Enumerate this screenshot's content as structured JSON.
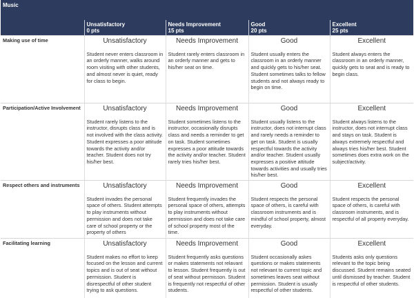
{
  "title": "Music",
  "levels": [
    {
      "name": "Unsatisfactory",
      "points": "0 pts"
    },
    {
      "name": "Needs Improvement",
      "points": "15 pts"
    },
    {
      "name": "Good",
      "points": "20 pts"
    },
    {
      "name": "Excellent",
      "points": "25 pts"
    }
  ],
  "criteria": [
    {
      "name": "Making use of time",
      "cells": [
        "Student never enters classroom in an orderly manner, walks around room visiting with other students, and almost never is quiet, ready for class to begin.",
        "Student rarely enters classroom in an orderly manner and gets to his/her seat on time.",
        "Student usually enters the classroom in an orderly manner and quickly gets to his/her seat. Student sometimes talks to fellow students and not always ready to begin on time.",
        "Student always enters the classroom in an orderly manner, quickly gets to seat and is ready to begin class."
      ]
    },
    {
      "name": "Participation/Active Involvement",
      "cells": [
        "Student rarely listens to the instructor, disrupts class and is not involved with the class activity. Student expresses a poor attitude towards the activity and/or teacher. Student does not try his/her best.",
        "Student sometimes listens to the instructor, occasionally disrupts class and needs a reminder to get on task. Student sometimes expresses a poor attitude towards the activity and/or teacher. Student rarely tries his/her best.",
        "Student usually listens to the instructor, does not interrupt class and rarely needs a reminder to get on task. Student is usually respectful towards the activity and/or teacher. Student usually expresses a positive attitude towards activities and usually tries his/her best.",
        "Student always listens to the instructor, does not interrupt class and stays on task. Student is always extremely respectful and always tries his/her best. Student sometimes does extra work on the subject/activity."
      ]
    },
    {
      "name": "Respect others and instruments",
      "cells": [
        "Student invades the personal space of others. Student attempts to play instruments without permission and does not take care of school property or the property of others",
        "Student frequently invades the personal space of others, attempts to play instruments without permission and does not take care of school property most of the time.",
        "Student respects the personal space of others, is careful with classroom instruments and is mindful of school property, almost everyday.",
        "Student respects the personal space of others, is careful with classroom instruments, and is respectful of all property everyday."
      ]
    },
    {
      "name": "Facilitating learning",
      "cells": [
        "Student makes no effort to keep focused on the lesson and current topics and is out of seat without permission. Student is disrespectful of other student trying to ask questions.",
        "Student frequently asks questions or makes statements not relavant to lesson. Student frequently is out of seat without permisson. Student is frequently not respectful of other students.",
        "Student occasionally askes questions or makes statements not relevant to current topic and sometimes leaves seat without permission. Student is usually respectful of other students.",
        "Students asks only questions relevant to the topic being discussed. Student remains seated until dismissed by teacher. Student is respectful of other students."
      ]
    }
  ]
}
